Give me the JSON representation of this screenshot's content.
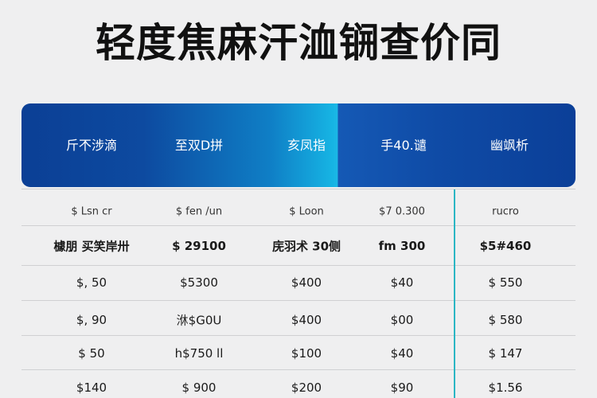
{
  "title": "轻度焦麻汗洫锎查价同",
  "colors": {
    "header_dark": "#0b3f95",
    "header_light": "#1bb8e6",
    "accent_line": "#2bb6c4"
  },
  "table": {
    "headers": [
      "斤𣎴涉滴",
      "至双D拼",
      "亥凤指",
      "手40.谴",
      "幽飒析"
    ],
    "rows": [
      [
        "$ Lsn cr",
        "$ fen /un",
        "$ Loon",
        "$7 0.300",
        "rucro"
      ],
      [
        "㯫朋 买笑岸卅",
        "$ 29100",
        "庑羽术 30侧",
        "fm 300",
        "$5#460"
      ],
      [
        "$, 50",
        "$5300",
        "$400",
        "$40",
        "$ 550"
      ],
      [
        "$, 90",
        "㳜$G0U",
        "$400",
        "$00",
        "$ 580"
      ],
      [
        "$ 50",
        "h$750 ll",
        "$100",
        "$40",
        "$ 147"
      ],
      [
        "$140",
        "$ 900",
        "$200",
        "$90",
        "$1.56"
      ]
    ]
  }
}
